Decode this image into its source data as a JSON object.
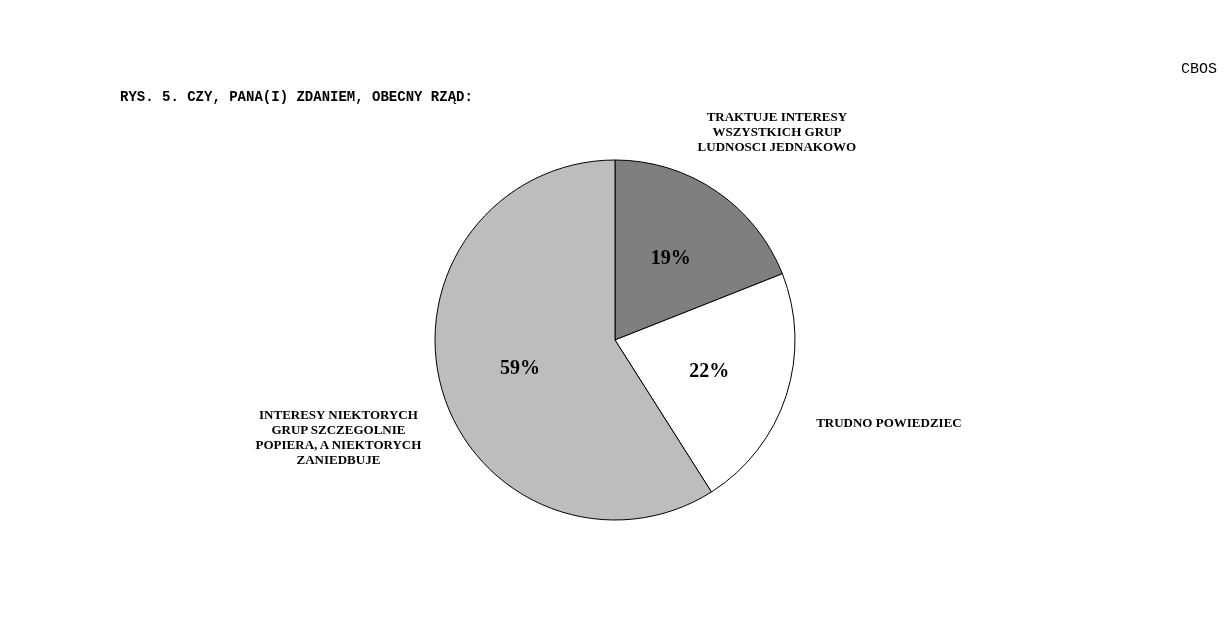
{
  "chart_data": {
    "type": "pie",
    "title": "RYS. 5. CZY, PANA(I) ZDANIEM, OBECNY RZĄD:",
    "categories": [
      "TRAKTUJE INTERESY WSZYSTKICH GRUP LUDNOSCI JEDNAKOWO",
      "TRUDNO POWIEDZIEC",
      "INTERESY NIEKTORYCH GRUP SZCZEGOLNIE POPIERA, A NIEKTORYCH ZANIEDBUJE"
    ],
    "values": [
      19,
      22,
      59
    ],
    "value_labels": [
      "19%",
      "22%",
      "59%"
    ],
    "colors": [
      "#7f7f7f",
      "#ffffff",
      "#bdbdbd"
    ],
    "annotations": [
      "CBOS"
    ]
  }
}
